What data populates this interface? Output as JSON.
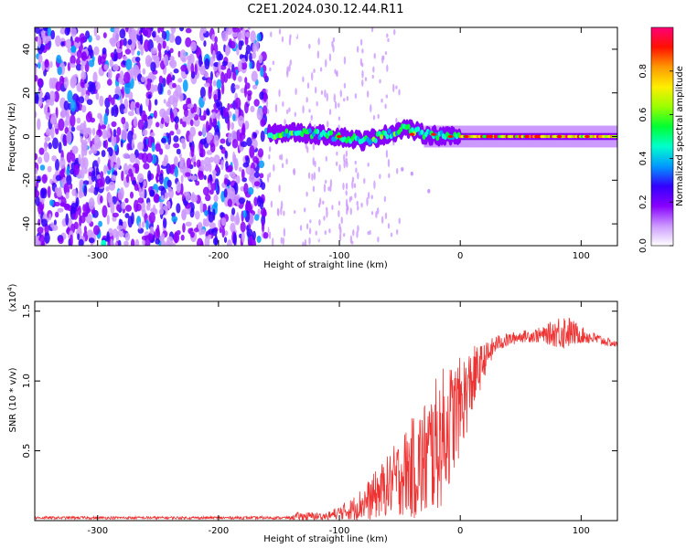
{
  "title": "C2E1.2024.030.12.44.R11",
  "chart_data": [
    {
      "type": "heatmap",
      "xlabel": "Height of straight line (km)",
      "ylabel": "Frequency (Hz)",
      "xlim": [
        -352,
        130
      ],
      "ylim": [
        -50,
        50
      ],
      "xticks": [
        {
          "v": -300,
          "label": "-300"
        },
        {
          "v": -200,
          "label": "-200"
        },
        {
          "v": -100,
          "label": "-100"
        },
        {
          "v": 0,
          "label": "0"
        },
        {
          "v": 100,
          "label": "100"
        }
      ],
      "yticks": [
        {
          "v": 40,
          "label": "40"
        },
        {
          "v": 20,
          "label": "20"
        },
        {
          "v": 0,
          "label": "0"
        },
        {
          "v": -20,
          "label": "-20"
        },
        {
          "v": -40,
          "label": "-40"
        }
      ],
      "colorbar": {
        "label": "Normalized spectral amplitude",
        "range": [
          0,
          1
        ],
        "ticks": [
          {
            "v": 0.0,
            "label": "0.0"
          },
          {
            "v": 0.2,
            "label": "0.2"
          },
          {
            "v": 0.4,
            "label": "0.4"
          },
          {
            "v": 0.6,
            "label": "0.6"
          },
          {
            "v": 0.8,
            "label": "0.8"
          }
        ],
        "colors": [
          "#ffffff",
          "#cc99ff",
          "#8800ff",
          "#3300ff",
          "#0099ff",
          "#00ffcc",
          "#00ff33",
          "#99ff00",
          "#ffee00",
          "#ff9900",
          "#ff1100",
          "#ff0077"
        ]
      },
      "regions": [
        {
          "x": [
            -352,
            -160
          ],
          "description": "broadband noise across all frequencies"
        },
        {
          "x": [
            -160,
            130
          ],
          "signal_frequency_hz": 0
        }
      ],
      "signal_trace": [
        {
          "x": -158,
          "f": 1
        },
        {
          "x": -140,
          "f": 2
        },
        {
          "x": -120,
          "f": 1
        },
        {
          "x": -100,
          "f": 0
        },
        {
          "x": -80,
          "f": -2
        },
        {
          "x": -60,
          "f": 1
        },
        {
          "x": -45,
          "f": 4
        },
        {
          "x": -30,
          "f": 1
        },
        {
          "x": -10,
          "f": 0
        },
        {
          "x": 10,
          "f": 0
        },
        {
          "x": 60,
          "f": 0
        },
        {
          "x": 130,
          "f": 0
        }
      ]
    },
    {
      "type": "line",
      "xlabel": "Height of straight line (km)",
      "ylabel": "SNR (10 * v/v)",
      "multiplier": "(x10",
      "multiplier_exp": "4",
      "multiplier_close": ")",
      "xlim": [
        -352,
        130
      ],
      "ylim": [
        0,
        1.57
      ],
      "xticks": [
        {
          "v": -300,
          "label": "-300"
        },
        {
          "v": -200,
          "label": "-200"
        },
        {
          "v": -100,
          "label": "-100"
        },
        {
          "v": 0,
          "label": "0"
        },
        {
          "v": 100,
          "label": "100"
        }
      ],
      "yticks": [
        {
          "v": 0.5,
          "label": "0.5"
        },
        {
          "v": 1.0,
          "label": "1.0"
        },
        {
          "v": 1.5,
          "label": "1.5"
        }
      ],
      "color": "#ee3333",
      "envelope": [
        {
          "x": -352,
          "mean": 0.02,
          "amp": 0.01
        },
        {
          "x": -140,
          "mean": 0.02,
          "amp": 0.01
        },
        {
          "x": -135,
          "mean": 0.03,
          "amp": 0.03
        },
        {
          "x": -110,
          "mean": 0.03,
          "amp": 0.03
        },
        {
          "x": -90,
          "mean": 0.08,
          "amp": 0.08
        },
        {
          "x": -75,
          "mean": 0.15,
          "amp": 0.15
        },
        {
          "x": -60,
          "mean": 0.25,
          "amp": 0.22
        },
        {
          "x": -45,
          "mean": 0.35,
          "amp": 0.32
        },
        {
          "x": -30,
          "mean": 0.42,
          "amp": 0.45
        },
        {
          "x": -15,
          "mean": 0.6,
          "amp": 0.5
        },
        {
          "x": 0,
          "mean": 0.82,
          "amp": 0.35
        },
        {
          "x": 10,
          "mean": 1.0,
          "amp": 0.25
        },
        {
          "x": 20,
          "mean": 1.15,
          "amp": 0.12
        },
        {
          "x": 30,
          "mean": 1.27,
          "amp": 0.06
        },
        {
          "x": 50,
          "mean": 1.32,
          "amp": 0.04
        },
        {
          "x": 70,
          "mean": 1.33,
          "amp": 0.06
        },
        {
          "x": 85,
          "mean": 1.36,
          "amp": 0.14
        },
        {
          "x": 100,
          "mean": 1.33,
          "amp": 0.06
        },
        {
          "x": 130,
          "mean": 1.26,
          "amp": 0.02
        }
      ]
    }
  ]
}
